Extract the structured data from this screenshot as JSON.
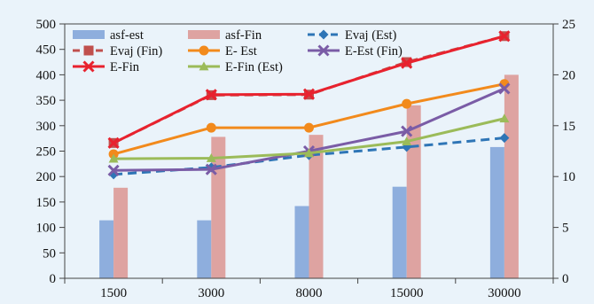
{
  "chart_data": {
    "type": "bar",
    "title": "",
    "xlabel": "",
    "ylabel": "",
    "y2label": "",
    "categories": [
      "1500",
      "3000",
      "8000",
      "15000",
      "30000"
    ],
    "ylim": [
      0,
      500
    ],
    "yticks": [
      0,
      50,
      100,
      150,
      200,
      250,
      300,
      350,
      400,
      450,
      500
    ],
    "y2lim": [
      0,
      25
    ],
    "y2ticks": [
      0,
      5,
      10,
      15,
      20,
      25
    ],
    "grid": false,
    "legend_position": "top",
    "bar_series": [
      {
        "name": "asf-est",
        "axis": "right",
        "color": "#8eaedd",
        "values": [
          5.7,
          5.7,
          7.1,
          9.0,
          12.9
        ]
      },
      {
        "name": "asf-Fin",
        "axis": "right",
        "color": "#dea3a1",
        "values": [
          8.9,
          13.9,
          14.1,
          17.0,
          20.0
        ]
      }
    ],
    "line_series": [
      {
        "name": "Evaj (Est)",
        "axis": "right",
        "color": "#2e75b6",
        "marker": "diamond",
        "dashed": true,
        "values": [
          10.2,
          10.9,
          12.1,
          12.9,
          13.8
        ]
      },
      {
        "name": "Evaj (Fin)",
        "axis": "left",
        "color": "#c0504d",
        "marker": "square",
        "dashed": true,
        "values": [
          266,
          360,
          361,
          425,
          476
        ]
      },
      {
        "name": "E- Est",
        "axis": "left",
        "color": "#f28a1c",
        "marker": "circle",
        "dashed": false,
        "values": [
          244,
          296,
          296,
          343,
          382
        ]
      },
      {
        "name": "E-Est (Fin)",
        "axis": "left",
        "color": "#7a5ca6",
        "marker": "x",
        "dashed": false,
        "values": [
          212,
          214,
          250,
          289,
          373
        ]
      },
      {
        "name": "E-Fin",
        "axis": "left",
        "color": "#e8222e",
        "marker": "x",
        "dashed": false,
        "values": [
          266,
          361,
          362,
          423,
          476
        ]
      },
      {
        "name": "E-Fin (Est)",
        "axis": "left",
        "color": "#9bbb59",
        "marker": "triangle",
        "dashed": false,
        "values": [
          235,
          236,
          246,
          269,
          314
        ]
      }
    ]
  },
  "legend_order": [
    {
      "kind": "bar",
      "ref": 0
    },
    {
      "kind": "bar",
      "ref": 1
    },
    {
      "kind": "line",
      "ref": 0
    },
    {
      "kind": "line",
      "ref": 1
    },
    {
      "kind": "line",
      "ref": 2
    },
    {
      "kind": "line",
      "ref": 3
    },
    {
      "kind": "line",
      "ref": 4
    },
    {
      "kind": "line",
      "ref": 5
    }
  ]
}
